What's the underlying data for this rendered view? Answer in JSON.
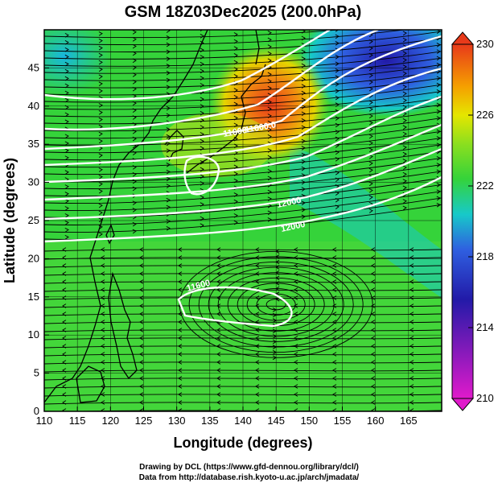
{
  "title": "GSM 18Z03Dec2025 (200.0hPa)",
  "x_axis_label": "Longitude (degrees)",
  "y_axis_label": "Latitude  (degrees)",
  "x_ticks": [
    "110",
    "115",
    "120",
    "125",
    "130",
    "135",
    "140",
    "145",
    "150",
    "155",
    "160",
    "165"
  ],
  "y_ticks": [
    "0",
    "5",
    "10",
    "15",
    "20",
    "25",
    "30",
    "35",
    "40",
    "45"
  ],
  "colorbar_ticks": [
    "230",
    "226",
    "222",
    "218",
    "214",
    "210"
  ],
  "contour_labels": [
    "11600",
    "11600.0",
    "12000",
    "12000",
    "11600"
  ],
  "credit_line_1": "Drawing by DCL (https://www.gfd-dennou.org/library/dcl/)",
  "credit_line_2": "Data from http://database.rish.kyoto-u.ac.jp/arch/jmadata/",
  "colors": {
    "warm": "#e83a1a",
    "orange": "#f5a000",
    "yellow": "#e5e600",
    "green": "#35d33a",
    "cyan": "#17c9c9",
    "blue": "#2f5fe0",
    "navy": "#221aa8",
    "magenta": "#e01acb",
    "contour": "#ffffff",
    "streamline": "#000000",
    "coast": "#000000"
  }
}
